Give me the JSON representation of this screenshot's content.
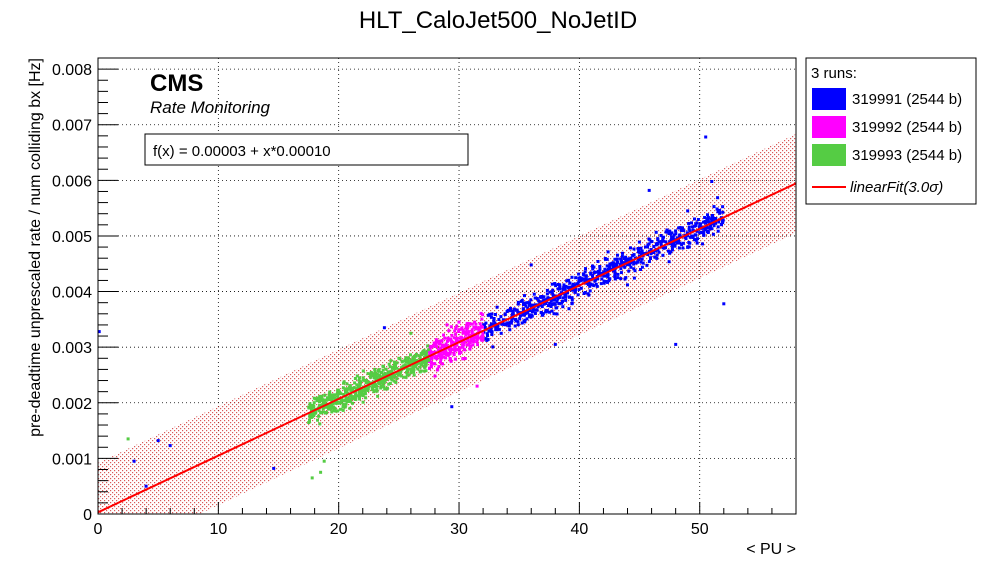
{
  "chart_data": {
    "type": "scatter",
    "title": "HLT_CaloJet500_NoJetID",
    "xlabel": "< PU >",
    "ylabel": "pre-deadtime unprescaled rate / num colliding bx [Hz]",
    "xlim": [
      0,
      58
    ],
    "ylim": [
      0,
      0.0082
    ],
    "xticks": [
      "0",
      "10",
      "20",
      "30",
      "40",
      "50"
    ],
    "yticks": [
      "0",
      "0.001",
      "0.002",
      "0.003",
      "0.004",
      "0.005",
      "0.006",
      "0.007",
      "0.008"
    ],
    "grid": true,
    "cms_label": "CMS",
    "cms_sublabel": "Rate Monitoring",
    "fit_formula": "f(x) = 0.00003 + x*0.00010",
    "fit": {
      "name": "linearFit(3.0σ)",
      "intercept": 3e-05,
      "slope": 0.000102,
      "band_halfwidth": 0.00089,
      "color": "#ff0000"
    },
    "legend": {
      "header": "3 runs:",
      "placement": "outside-right-top"
    },
    "series": [
      {
        "name": "319991 (2544 b)",
        "color": "#0000ff",
        "cluster": {
          "x_range": [
            32.0,
            52.0
          ],
          "y_center_at_x": "fit",
          "spread": 0.00016,
          "count": 700
        },
        "points": [
          [
            0.1,
            0.00328
          ],
          [
            3.0,
            0.00095
          ],
          [
            4.0,
            0.0005
          ],
          [
            5.0,
            0.00132
          ],
          [
            6.0,
            0.00123
          ],
          [
            14.6,
            0.00082
          ],
          [
            23.8,
            0.00335
          ],
          [
            29.4,
            0.00193
          ],
          [
            38.0,
            0.00305
          ],
          [
            45.8,
            0.00582
          ],
          [
            48.0,
            0.00305
          ],
          [
            50.5,
            0.00678
          ],
          [
            52.0,
            0.00378
          ],
          [
            33.5,
            0.00325
          ],
          [
            36.0,
            0.00448
          ],
          [
            44.0,
            0.00412
          ],
          [
            49.0,
            0.00545
          ],
          [
            51.0,
            0.00598
          ]
        ]
      },
      {
        "name": "319992 (2544 b)",
        "color": "#ff00ff",
        "cluster": {
          "x_range": [
            27.5,
            32.0
          ],
          "y_center_at_x": "fit",
          "spread": 0.00018,
          "count": 260
        },
        "points": [
          [
            28.0,
            0.00248
          ],
          [
            30.0,
            0.00345
          ],
          [
            31.5,
            0.0023
          ],
          [
            29.0,
            0.0034
          ]
        ]
      },
      {
        "name": "319993 (2544 b)",
        "color": "#55cc44",
        "cluster": {
          "x_range": [
            17.5,
            27.5
          ],
          "y_center_at_x": "fit",
          "spread": 0.00014,
          "count": 520
        },
        "points": [
          [
            2.5,
            0.00135
          ],
          [
            17.8,
            0.00065
          ],
          [
            18.5,
            0.00075
          ],
          [
            18.8,
            0.00095
          ],
          [
            26.0,
            0.00325
          ],
          [
            25.0,
            0.0028
          ]
        ]
      }
    ]
  }
}
